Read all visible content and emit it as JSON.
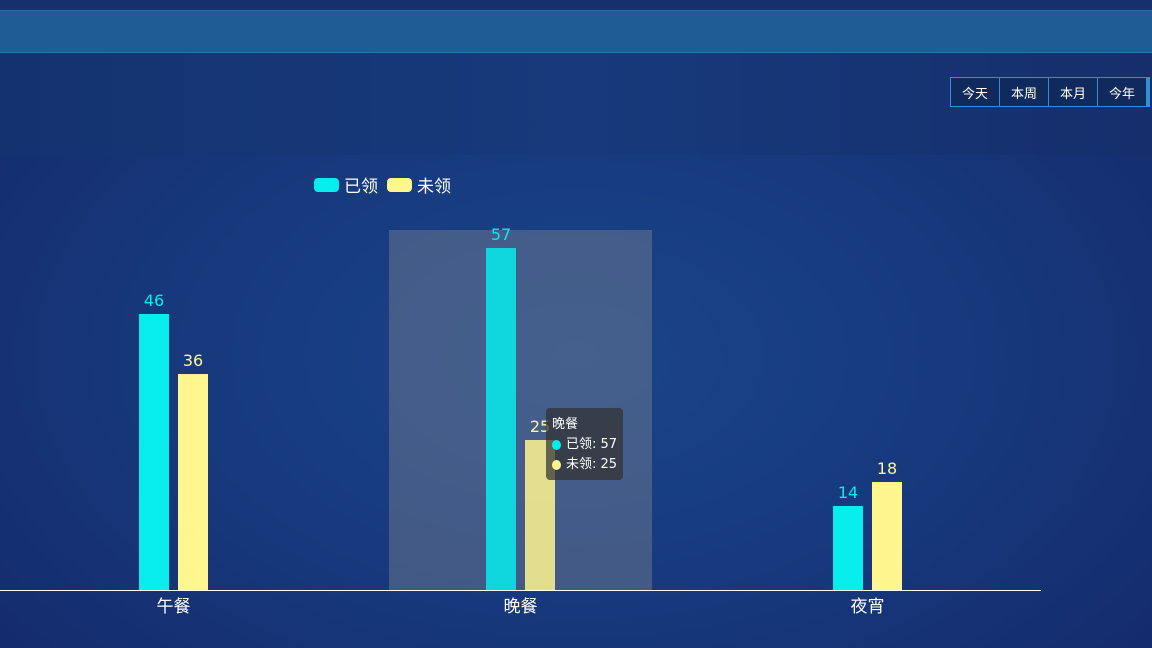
{
  "range_tabs": [
    "今天",
    "本周",
    "本月",
    "今年"
  ],
  "colors": {
    "received": "#07ecec",
    "unreceived": "#fff68f",
    "highlight": "rgba(150,150,150,0.35)",
    "axis": "#ffffff"
  },
  "chart_data": {
    "type": "bar",
    "categories": [
      "午餐",
      "晚餐",
      "夜宵"
    ],
    "series": [
      {
        "name": "已领",
        "values": [
          46,
          57,
          14
        ]
      },
      {
        "name": "未领",
        "values": [
          36,
          25,
          18
        ]
      }
    ],
    "legend_position": "top",
    "grid": false,
    "highlighted_category": "晚餐"
  },
  "tooltip": {
    "title": "晚餐",
    "rows": [
      {
        "label": "已领: 57"
      },
      {
        "label": "未领: 25"
      }
    ]
  }
}
